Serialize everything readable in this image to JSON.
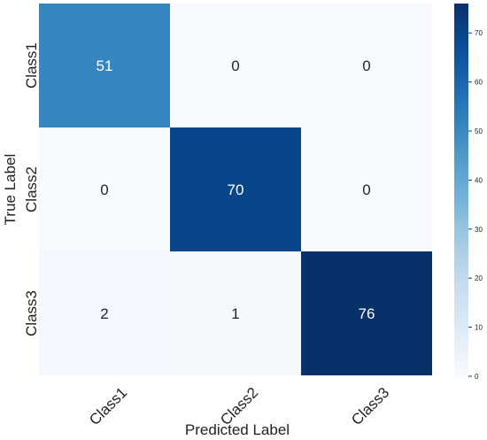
{
  "chart_data": {
    "type": "heatmap",
    "title": "",
    "xlabel": "Predicted Label",
    "ylabel": "True Label",
    "x_categories": [
      "Class1",
      "Class2",
      "Class3"
    ],
    "y_categories": [
      "Class1",
      "Class2",
      "Class3"
    ],
    "values": [
      [
        51,
        0,
        0
      ],
      [
        0,
        70,
        0
      ],
      [
        2,
        1,
        76
      ]
    ],
    "colormap": "Blues",
    "colorbar": {
      "range": [
        0,
        76
      ],
      "ticks": [
        0,
        10,
        20,
        30,
        40,
        50,
        60,
        70
      ]
    },
    "colors": {
      "low": "#f7fbff",
      "high": "#08306b",
      "text_dark_cell": "#ffffff",
      "text_light_cell": "#262626"
    }
  }
}
